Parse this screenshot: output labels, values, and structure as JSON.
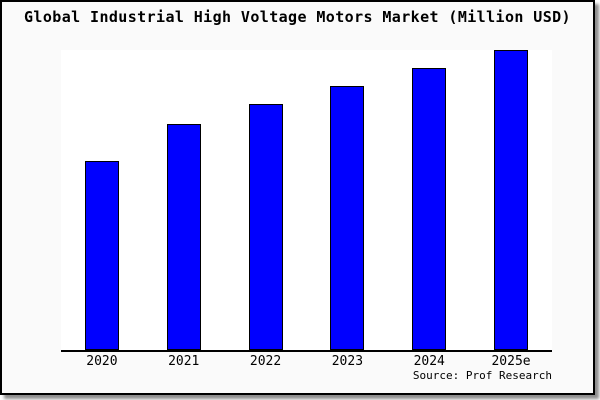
{
  "title": "Global Industrial High Voltage Motors Market (Million USD)",
  "source_label": "Source: Prof Research",
  "chart_data": {
    "type": "bar",
    "title": "Global Industrial High Voltage Motors Market (Million USD)",
    "categories": [
      "2020",
      "2021",
      "2022",
      "2023",
      "2024",
      "2025e"
    ],
    "values": [
      189,
      226,
      246,
      264,
      282,
      300
    ],
    "values_note": "no y-axis, gridlines or data labels shown; values are relative bar heights in pixels",
    "xlabel": "",
    "ylabel": "",
    "grid": false,
    "legend": "none",
    "source": "Source: Prof Research",
    "colors": {
      "bar_fill": "#0000FF",
      "bar_border": "#000000",
      "plot_background": "#FFFFFF",
      "frame_background": "#FAFAFA",
      "frame_border": "#000000",
      "axis_line": "#000000",
      "text": "#000000"
    }
  }
}
